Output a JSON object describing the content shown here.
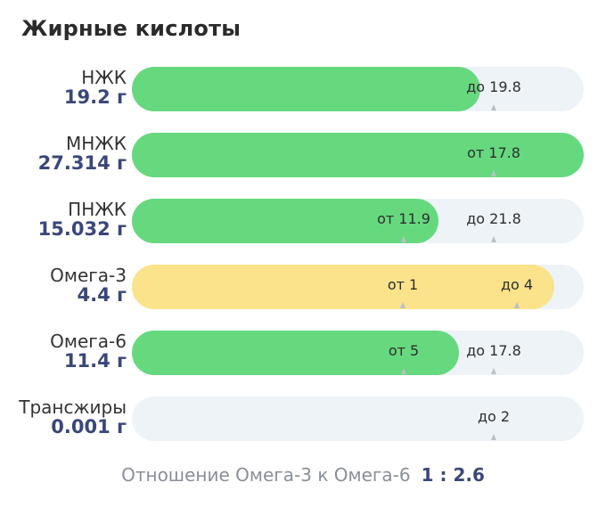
{
  "title": "Жирные кислоты",
  "rows": [
    {
      "label": "НЖК",
      "value": "19.2 г",
      "fill_fraction": 0.772,
      "fill_color": "green",
      "markers": [
        {
          "text": "до 19.8",
          "pos_fraction": 0.8
        }
      ]
    },
    {
      "label": "МНЖК",
      "value": "27.314 г",
      "fill_fraction": 1.0,
      "fill_color": "green",
      "markers": [
        {
          "text": "от 17.8",
          "pos_fraction": 0.8
        }
      ]
    },
    {
      "label": "ПНЖК",
      "value": "15.032 г",
      "fill_fraction": 0.679,
      "fill_color": "green",
      "markers": [
        {
          "text": "от 11.9",
          "pos_fraction": 0.602
        },
        {
          "text": "до 21.8",
          "pos_fraction": 0.8
        }
      ]
    },
    {
      "label": "Омега-3",
      "value": "4.4 г",
      "fill_fraction": 0.935,
      "fill_color": "yellow",
      "markers": [
        {
          "text": "от 1",
          "pos_fraction": 0.6
        },
        {
          "text": "до 4",
          "pos_fraction": 0.852
        }
      ]
    },
    {
      "label": "Омега-6",
      "value": "11.4 г",
      "fill_fraction": 0.724,
      "fill_color": "green",
      "markers": [
        {
          "text": "от 5",
          "pos_fraction": 0.602
        },
        {
          "text": "до 17.8",
          "pos_fraction": 0.8
        }
      ]
    },
    {
      "label": "Трансжиры",
      "value": "0.001 г",
      "fill_fraction": 0.0,
      "fill_color": "green",
      "markers": [
        {
          "text": "до 2",
          "pos_fraction": 0.8
        }
      ]
    }
  ],
  "ratio": {
    "label": "Отношение Омега-3 к Омега-6",
    "value": "1 : 2.6"
  },
  "colors": {
    "green": "#66d97f",
    "yellow": "#fbe38b",
    "track": "#edf3f7",
    "value_text": "#3a4779"
  }
}
